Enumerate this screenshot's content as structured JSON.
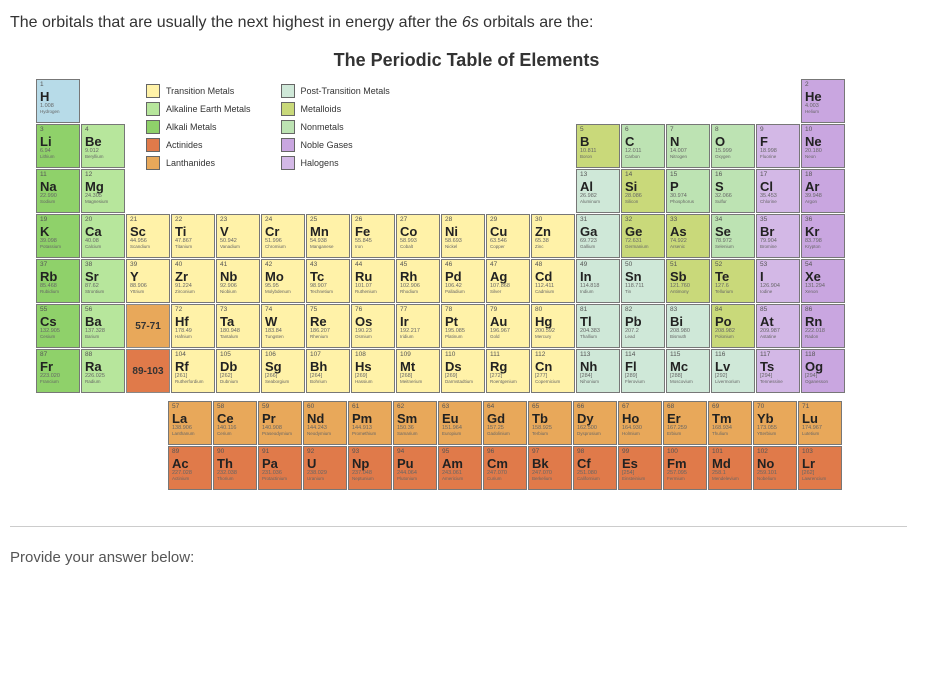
{
  "question_prefix": "The orbitals that are usually the next highest in energy after the ",
  "question_orbital": "6s",
  "question_suffix": " orbitals are the:",
  "table_title": "The Periodic Table of Elements",
  "answer_label": "Provide your answer below:",
  "colors": {
    "alkali": "#8fd16a",
    "alkaline": "#b7e69c",
    "transition": "#fff2a8",
    "post_transition": "#cfe8d8",
    "metalloid": "#c9d97a",
    "nonmetal": "#bde3b3",
    "noble": "#c9a6e0",
    "halogen": "#d3b8e6",
    "lanthanide": "#e8a85a",
    "actinide": "#e07a4a",
    "hydrogen": "#b7dbe8",
    "placeholder_lan": "#e8a85a",
    "placeholder_act": "#e07a4a"
  },
  "legend": {
    "col1": [
      {
        "color": "#fff2a8",
        "label": "Transition Metals"
      },
      {
        "color": "#b7e69c",
        "label": "Alkaline Earth Metals"
      },
      {
        "color": "#8fd16a",
        "label": "Alkali Metals"
      },
      {
        "color": "#e07a4a",
        "label": "Actinides"
      },
      {
        "color": "#e8a85a",
        "label": "Lanthanides"
      }
    ],
    "col2": [
      {
        "color": "#cfe8d8",
        "label": "Post-Transition Metals"
      },
      {
        "color": "#c9d97a",
        "label": "Metalloids"
      },
      {
        "color": "#bde3b3",
        "label": "Nonmetals"
      },
      {
        "color": "#c9a6e0",
        "label": "Noble Gases"
      },
      {
        "color": "#d3b8e6",
        "label": "Halogens"
      }
    ]
  },
  "placeholders": {
    "lan": "57-71",
    "act": "89-103"
  },
  "elements": [
    {
      "n": 1,
      "s": "H",
      "m": "1.008",
      "nm": "Hydrogen",
      "c": "hydrogen",
      "row": 1,
      "col": 1
    },
    {
      "n": 2,
      "s": "He",
      "m": "4.003",
      "nm": "Helium",
      "c": "noble",
      "row": 1,
      "col": 18
    },
    {
      "n": 3,
      "s": "Li",
      "m": "6.94",
      "nm": "Lithium",
      "c": "alkali",
      "row": 2,
      "col": 1
    },
    {
      "n": 4,
      "s": "Be",
      "m": "9.012",
      "nm": "Beryllium",
      "c": "alkaline",
      "row": 2,
      "col": 2
    },
    {
      "n": 5,
      "s": "B",
      "m": "10.811",
      "nm": "Boron",
      "c": "metalloid",
      "row": 2,
      "col": 13
    },
    {
      "n": 6,
      "s": "C",
      "m": "12.011",
      "nm": "Carbon",
      "c": "nonmetal",
      "row": 2,
      "col": 14
    },
    {
      "n": 7,
      "s": "N",
      "m": "14.007",
      "nm": "Nitrogen",
      "c": "nonmetal",
      "row": 2,
      "col": 15
    },
    {
      "n": 8,
      "s": "O",
      "m": "15.999",
      "nm": "Oxygen",
      "c": "nonmetal",
      "row": 2,
      "col": 16
    },
    {
      "n": 9,
      "s": "F",
      "m": "18.998",
      "nm": "Fluorine",
      "c": "halogen",
      "row": 2,
      "col": 17
    },
    {
      "n": 10,
      "s": "Ne",
      "m": "20.180",
      "nm": "Neon",
      "c": "noble",
      "row": 2,
      "col": 18
    },
    {
      "n": 11,
      "s": "Na",
      "m": "22.990",
      "nm": "Sodium",
      "c": "alkali",
      "row": 3,
      "col": 1
    },
    {
      "n": 12,
      "s": "Mg",
      "m": "24.305",
      "nm": "Magnesium",
      "c": "alkaline",
      "row": 3,
      "col": 2
    },
    {
      "n": 13,
      "s": "Al",
      "m": "26.982",
      "nm": "Aluminum",
      "c": "post_transition",
      "row": 3,
      "col": 13
    },
    {
      "n": 14,
      "s": "Si",
      "m": "28.086",
      "nm": "Silicon",
      "c": "metalloid",
      "row": 3,
      "col": 14
    },
    {
      "n": 15,
      "s": "P",
      "m": "30.974",
      "nm": "Phosphorus",
      "c": "nonmetal",
      "row": 3,
      "col": 15
    },
    {
      "n": 16,
      "s": "S",
      "m": "32.066",
      "nm": "Sulfur",
      "c": "nonmetal",
      "row": 3,
      "col": 16
    },
    {
      "n": 17,
      "s": "Cl",
      "m": "35.453",
      "nm": "Chlorine",
      "c": "halogen",
      "row": 3,
      "col": 17
    },
    {
      "n": 18,
      "s": "Ar",
      "m": "39.948",
      "nm": "Argon",
      "c": "noble",
      "row": 3,
      "col": 18
    },
    {
      "n": 19,
      "s": "K",
      "m": "39.098",
      "nm": "Potassium",
      "c": "alkali",
      "row": 4,
      "col": 1
    },
    {
      "n": 20,
      "s": "Ca",
      "m": "40.08",
      "nm": "Calcium",
      "c": "alkaline",
      "row": 4,
      "col": 2
    },
    {
      "n": 21,
      "s": "Sc",
      "m": "44.956",
      "nm": "Scandium",
      "c": "transition",
      "row": 4,
      "col": 3
    },
    {
      "n": 22,
      "s": "Ti",
      "m": "47.867",
      "nm": "Titanium",
      "c": "transition",
      "row": 4,
      "col": 4
    },
    {
      "n": 23,
      "s": "V",
      "m": "50.942",
      "nm": "Vanadium",
      "c": "transition",
      "row": 4,
      "col": 5
    },
    {
      "n": 24,
      "s": "Cr",
      "m": "51.996",
      "nm": "Chromium",
      "c": "transition",
      "row": 4,
      "col": 6
    },
    {
      "n": 25,
      "s": "Mn",
      "m": "54.938",
      "nm": "Manganese",
      "c": "transition",
      "row": 4,
      "col": 7
    },
    {
      "n": 26,
      "s": "Fe",
      "m": "55.845",
      "nm": "Iron",
      "c": "transition",
      "row": 4,
      "col": 8
    },
    {
      "n": 27,
      "s": "Co",
      "m": "58.993",
      "nm": "Cobalt",
      "c": "transition",
      "row": 4,
      "col": 9
    },
    {
      "n": 28,
      "s": "Ni",
      "m": "58.693",
      "nm": "Nickel",
      "c": "transition",
      "row": 4,
      "col": 10
    },
    {
      "n": 29,
      "s": "Cu",
      "m": "63.546",
      "nm": "Copper",
      "c": "transition",
      "row": 4,
      "col": 11
    },
    {
      "n": 30,
      "s": "Zn",
      "m": "65.38",
      "nm": "Zinc",
      "c": "transition",
      "row": 4,
      "col": 12
    },
    {
      "n": 31,
      "s": "Ga",
      "m": "69.723",
      "nm": "Gallium",
      "c": "post_transition",
      "row": 4,
      "col": 13
    },
    {
      "n": 32,
      "s": "Ge",
      "m": "72.631",
      "nm": "Germanium",
      "c": "metalloid",
      "row": 4,
      "col": 14
    },
    {
      "n": 33,
      "s": "As",
      "m": "74.922",
      "nm": "Arsenic",
      "c": "metalloid",
      "row": 4,
      "col": 15
    },
    {
      "n": 34,
      "s": "Se",
      "m": "78.972",
      "nm": "Selenium",
      "c": "nonmetal",
      "row": 4,
      "col": 16
    },
    {
      "n": 35,
      "s": "Br",
      "m": "79.904",
      "nm": "Bromine",
      "c": "halogen",
      "row": 4,
      "col": 17
    },
    {
      "n": 36,
      "s": "Kr",
      "m": "83.798",
      "nm": "Krypton",
      "c": "noble",
      "row": 4,
      "col": 18
    },
    {
      "n": 37,
      "s": "Rb",
      "m": "85.468",
      "nm": "Rubidium",
      "c": "alkali",
      "row": 5,
      "col": 1
    },
    {
      "n": 38,
      "s": "Sr",
      "m": "87.62",
      "nm": "Strontium",
      "c": "alkaline",
      "row": 5,
      "col": 2
    },
    {
      "n": 39,
      "s": "Y",
      "m": "88.906",
      "nm": "Yttrium",
      "c": "transition",
      "row": 5,
      "col": 3
    },
    {
      "n": 40,
      "s": "Zr",
      "m": "91.224",
      "nm": "Zirconium",
      "c": "transition",
      "row": 5,
      "col": 4
    },
    {
      "n": 41,
      "s": "Nb",
      "m": "92.906",
      "nm": "Niobium",
      "c": "transition",
      "row": 5,
      "col": 5
    },
    {
      "n": 42,
      "s": "Mo",
      "m": "95.95",
      "nm": "Molybdenum",
      "c": "transition",
      "row": 5,
      "col": 6
    },
    {
      "n": 43,
      "s": "Tc",
      "m": "98.907",
      "nm": "Technetium",
      "c": "transition",
      "row": 5,
      "col": 7
    },
    {
      "n": 44,
      "s": "Ru",
      "m": "101.07",
      "nm": "Ruthenium",
      "c": "transition",
      "row": 5,
      "col": 8
    },
    {
      "n": 45,
      "s": "Rh",
      "m": "102.906",
      "nm": "Rhodium",
      "c": "transition",
      "row": 5,
      "col": 9
    },
    {
      "n": 46,
      "s": "Pd",
      "m": "106.42",
      "nm": "Palladium",
      "c": "transition",
      "row": 5,
      "col": 10
    },
    {
      "n": 47,
      "s": "Ag",
      "m": "107.868",
      "nm": "Silver",
      "c": "transition",
      "row": 5,
      "col": 11
    },
    {
      "n": 48,
      "s": "Cd",
      "m": "112.411",
      "nm": "Cadmium",
      "c": "transition",
      "row": 5,
      "col": 12
    },
    {
      "n": 49,
      "s": "In",
      "m": "114.818",
      "nm": "Indium",
      "c": "post_transition",
      "row": 5,
      "col": 13
    },
    {
      "n": 50,
      "s": "Sn",
      "m": "118.711",
      "nm": "Tin",
      "c": "post_transition",
      "row": 5,
      "col": 14
    },
    {
      "n": 51,
      "s": "Sb",
      "m": "121.760",
      "nm": "Antimony",
      "c": "metalloid",
      "row": 5,
      "col": 15
    },
    {
      "n": 52,
      "s": "Te",
      "m": "127.6",
      "nm": "Tellurium",
      "c": "metalloid",
      "row": 5,
      "col": 16
    },
    {
      "n": 53,
      "s": "I",
      "m": "126.904",
      "nm": "Iodine",
      "c": "halogen",
      "row": 5,
      "col": 17
    },
    {
      "n": 54,
      "s": "Xe",
      "m": "131.294",
      "nm": "Xenon",
      "c": "noble",
      "row": 5,
      "col": 18
    },
    {
      "n": 55,
      "s": "Cs",
      "m": "132.905",
      "nm": "Cesium",
      "c": "alkali",
      "row": 6,
      "col": 1
    },
    {
      "n": 56,
      "s": "Ba",
      "m": "137.328",
      "nm": "Barium",
      "c": "alkaline",
      "row": 6,
      "col": 2
    },
    {
      "n": 72,
      "s": "Hf",
      "m": "178.49",
      "nm": "Hafnium",
      "c": "transition",
      "row": 6,
      "col": 4
    },
    {
      "n": 73,
      "s": "Ta",
      "m": "180.948",
      "nm": "Tantalum",
      "c": "transition",
      "row": 6,
      "col": 5
    },
    {
      "n": 74,
      "s": "W",
      "m": "183.84",
      "nm": "Tungsten",
      "c": "transition",
      "row": 6,
      "col": 6
    },
    {
      "n": 75,
      "s": "Re",
      "m": "186.207",
      "nm": "Rhenium",
      "c": "transition",
      "row": 6,
      "col": 7
    },
    {
      "n": 76,
      "s": "Os",
      "m": "190.23",
      "nm": "Osmium",
      "c": "transition",
      "row": 6,
      "col": 8
    },
    {
      "n": 77,
      "s": "Ir",
      "m": "192.217",
      "nm": "Iridium",
      "c": "transition",
      "row": 6,
      "col": 9
    },
    {
      "n": 78,
      "s": "Pt",
      "m": "195.085",
      "nm": "Platinum",
      "c": "transition",
      "row": 6,
      "col": 10
    },
    {
      "n": 79,
      "s": "Au",
      "m": "196.967",
      "nm": "Gold",
      "c": "transition",
      "row": 6,
      "col": 11
    },
    {
      "n": 80,
      "s": "Hg",
      "m": "200.592",
      "nm": "Mercury",
      "c": "transition",
      "row": 6,
      "col": 12
    },
    {
      "n": 81,
      "s": "Tl",
      "m": "204.383",
      "nm": "Thallium",
      "c": "post_transition",
      "row": 6,
      "col": 13
    },
    {
      "n": 82,
      "s": "Pb",
      "m": "207.2",
      "nm": "Lead",
      "c": "post_transition",
      "row": 6,
      "col": 14
    },
    {
      "n": 83,
      "s": "Bi",
      "m": "208.980",
      "nm": "Bismuth",
      "c": "post_transition",
      "row": 6,
      "col": 15
    },
    {
      "n": 84,
      "s": "Po",
      "m": "208.982",
      "nm": "Polonium",
      "c": "metalloid",
      "row": 6,
      "col": 16
    },
    {
      "n": 85,
      "s": "At",
      "m": "209.987",
      "nm": "Astatine",
      "c": "halogen",
      "row": 6,
      "col": 17
    },
    {
      "n": 86,
      "s": "Rn",
      "m": "222.018",
      "nm": "Radon",
      "c": "noble",
      "row": 6,
      "col": 18
    },
    {
      "n": 87,
      "s": "Fr",
      "m": "223.020",
      "nm": "Francium",
      "c": "alkali",
      "row": 7,
      "col": 1
    },
    {
      "n": 88,
      "s": "Ra",
      "m": "226.025",
      "nm": "Radium",
      "c": "alkaline",
      "row": 7,
      "col": 2
    },
    {
      "n": 104,
      "s": "Rf",
      "m": "[261]",
      "nm": "Rutherfordium",
      "c": "transition",
      "row": 7,
      "col": 4
    },
    {
      "n": 105,
      "s": "Db",
      "m": "[262]",
      "nm": "Dubnium",
      "c": "transition",
      "row": 7,
      "col": 5
    },
    {
      "n": 106,
      "s": "Sg",
      "m": "[266]",
      "nm": "Seaborgium",
      "c": "transition",
      "row": 7,
      "col": 6
    },
    {
      "n": 107,
      "s": "Bh",
      "m": "[264]",
      "nm": "Bohrium",
      "c": "transition",
      "row": 7,
      "col": 7
    },
    {
      "n": 108,
      "s": "Hs",
      "m": "[269]",
      "nm": "Hassium",
      "c": "transition",
      "row": 7,
      "col": 8
    },
    {
      "n": 109,
      "s": "Mt",
      "m": "[268]",
      "nm": "Meitnerium",
      "c": "transition",
      "row": 7,
      "col": 9
    },
    {
      "n": 110,
      "s": "Ds",
      "m": "[269]",
      "nm": "Darmstadtium",
      "c": "transition",
      "row": 7,
      "col": 10
    },
    {
      "n": 111,
      "s": "Rg",
      "m": "[272]",
      "nm": "Roentgenium",
      "c": "transition",
      "row": 7,
      "col": 11
    },
    {
      "n": 112,
      "s": "Cn",
      "m": "[277]",
      "nm": "Copernicium",
      "c": "transition",
      "row": 7,
      "col": 12
    },
    {
      "n": 113,
      "s": "Nh",
      "m": "[284]",
      "nm": "Nihonium",
      "c": "post_transition",
      "row": 7,
      "col": 13
    },
    {
      "n": 114,
      "s": "Fl",
      "m": "[289]",
      "nm": "Flerovium",
      "c": "post_transition",
      "row": 7,
      "col": 14
    },
    {
      "n": 115,
      "s": "Mc",
      "m": "[288]",
      "nm": "Moscovium",
      "c": "post_transition",
      "row": 7,
      "col": 15
    },
    {
      "n": 116,
      "s": "Lv",
      "m": "[292]",
      "nm": "Livermorium",
      "c": "post_transition",
      "row": 7,
      "col": 16
    },
    {
      "n": 117,
      "s": "Ts",
      "m": "[294]",
      "nm": "Tennessine",
      "c": "halogen",
      "row": 7,
      "col": 17
    },
    {
      "n": 118,
      "s": "Og",
      "m": "[294]",
      "nm": "Oganesson",
      "c": "noble",
      "row": 7,
      "col": 18
    }
  ],
  "lanthanides": [
    {
      "n": 57,
      "s": "La",
      "m": "138.906",
      "nm": "Lanthanum"
    },
    {
      "n": 58,
      "s": "Ce",
      "m": "140.116",
      "nm": "Cerium"
    },
    {
      "n": 59,
      "s": "Pr",
      "m": "140.908",
      "nm": "Praseodymium"
    },
    {
      "n": 60,
      "s": "Nd",
      "m": "144.243",
      "nm": "Neodymium"
    },
    {
      "n": 61,
      "s": "Pm",
      "m": "144.913",
      "nm": "Promethium"
    },
    {
      "n": 62,
      "s": "Sm",
      "m": "150.36",
      "nm": "Samarium"
    },
    {
      "n": 63,
      "s": "Eu",
      "m": "151.964",
      "nm": "Europium"
    },
    {
      "n": 64,
      "s": "Gd",
      "m": "157.25",
      "nm": "Gadolinium"
    },
    {
      "n": 65,
      "s": "Tb",
      "m": "158.925",
      "nm": "Terbium"
    },
    {
      "n": 66,
      "s": "Dy",
      "m": "162.500",
      "nm": "Dysprosium"
    },
    {
      "n": 67,
      "s": "Ho",
      "m": "164.930",
      "nm": "Holmium"
    },
    {
      "n": 68,
      "s": "Er",
      "m": "167.259",
      "nm": "Erbium"
    },
    {
      "n": 69,
      "s": "Tm",
      "m": "168.934",
      "nm": "Thulium"
    },
    {
      "n": 70,
      "s": "Yb",
      "m": "173.055",
      "nm": "Ytterbium"
    },
    {
      "n": 71,
      "s": "Lu",
      "m": "174.967",
      "nm": "Lutetium"
    }
  ],
  "actinides": [
    {
      "n": 89,
      "s": "Ac",
      "m": "227.028",
      "nm": "Actinium"
    },
    {
      "n": 90,
      "s": "Th",
      "m": "232.038",
      "nm": "Thorium"
    },
    {
      "n": 91,
      "s": "Pa",
      "m": "231.036",
      "nm": "Protactinium"
    },
    {
      "n": 92,
      "s": "U",
      "m": "238.029",
      "nm": "Uranium"
    },
    {
      "n": 93,
      "s": "Np",
      "m": "237.048",
      "nm": "Neptunium"
    },
    {
      "n": 94,
      "s": "Pu",
      "m": "244.064",
      "nm": "Plutonium"
    },
    {
      "n": 95,
      "s": "Am",
      "m": "243.061",
      "nm": "Americium"
    },
    {
      "n": 96,
      "s": "Cm",
      "m": "247.070",
      "nm": "Curium"
    },
    {
      "n": 97,
      "s": "Bk",
      "m": "247.070",
      "nm": "Berkelium"
    },
    {
      "n": 98,
      "s": "Cf",
      "m": "251.080",
      "nm": "Californium"
    },
    {
      "n": 99,
      "s": "Es",
      "m": "[254]",
      "nm": "Einsteinium"
    },
    {
      "n": 100,
      "s": "Fm",
      "m": "257.095",
      "nm": "Fermium"
    },
    {
      "n": 101,
      "s": "Md",
      "m": "258.1",
      "nm": "Mendelevium"
    },
    {
      "n": 102,
      "s": "No",
      "m": "259.101",
      "nm": "Nobelium"
    },
    {
      "n": 103,
      "s": "Lr",
      "m": "[262]",
      "nm": "Lawrencium"
    }
  ]
}
